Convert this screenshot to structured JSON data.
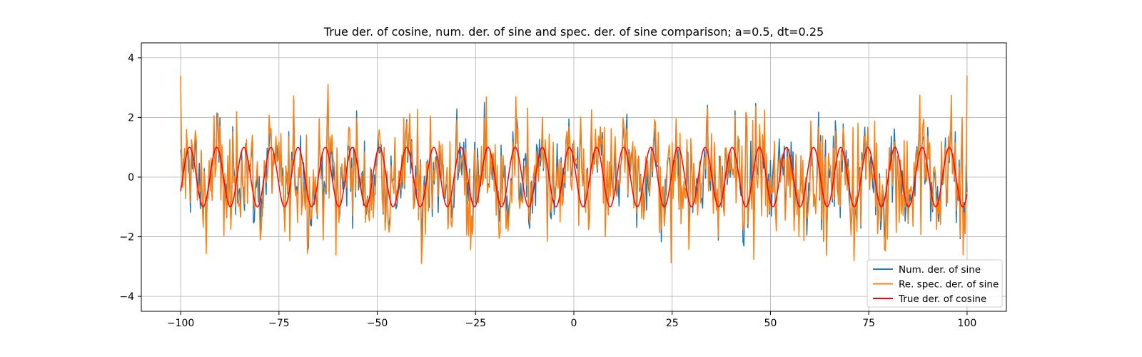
{
  "chart_data": {
    "type": "line",
    "title": "True der. of cosine, num. der. of sine and spec. der. of sine comparison; a=0.5, dt=0.25",
    "xlabel": "",
    "ylabel": "",
    "xlim": [
      -110,
      110
    ],
    "ylim": [
      -4.5,
      4.5
    ],
    "xticks": [
      -100,
      -75,
      -50,
      -25,
      0,
      25,
      50,
      75,
      100
    ],
    "xtick_labels": [
      "−100",
      "−75",
      "−50",
      "−25",
      "0",
      "25",
      "50",
      "75",
      "100"
    ],
    "yticks": [
      -4,
      -2,
      0,
      2,
      4
    ],
    "ytick_labels": [
      "−4",
      "−2",
      "0",
      "2",
      "4"
    ],
    "grid": true,
    "legend_position": "lower-right",
    "x_range": [
      -100,
      100
    ],
    "dt": 0.25,
    "series": [
      {
        "name": "Num. der. of sine",
        "color": "#1f77b4",
        "style": "noisy",
        "approx_amplitude_envelope": [
          -2.8,
          2.8
        ]
      },
      {
        "name": "Re. spec. der. of sine",
        "color": "#ff7f0e",
        "style": "noisy",
        "approx_amplitude_envelope": [
          -4.1,
          4.1
        ],
        "endpoints": [
          [
            -100,
            3.4
          ],
          [
            100,
            3.4
          ]
        ]
      },
      {
        "name": "True der. of cosine",
        "color": "#ff0000",
        "style": "sinusoid",
        "amplitude": 1,
        "period": 6.9,
        "start_value": [
          -100,
          -0.48
        ],
        "end_value": [
          100,
          0.48
        ]
      }
    ]
  }
}
